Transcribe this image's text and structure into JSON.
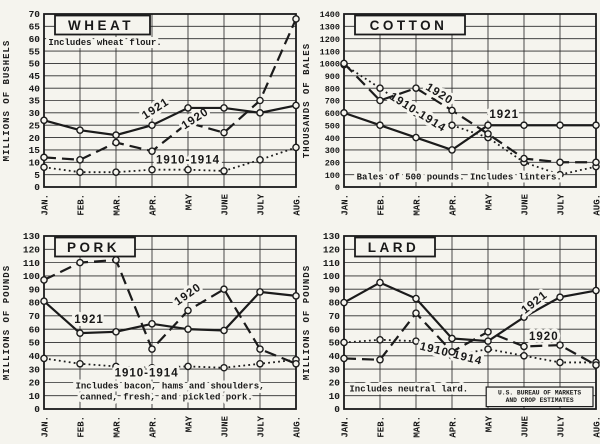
{
  "page": {
    "paper_color": "#f5f4ee",
    "ink_color": "#1b1b1b",
    "description": "Four line charts of monthly exports, January through August, comparing 1921, 1920 and the 1910-1914 average"
  },
  "chart_data": [
    {
      "id": "wheat",
      "type": "line",
      "title": "WHEAT",
      "ylabel": "MILLIONS OF BUSHELS",
      "ylim": [
        0,
        70
      ],
      "ystep": 5,
      "grid": true,
      "months": [
        "JAN.",
        "FEB.",
        "MAR.",
        "APR.",
        "MAY",
        "JUNE",
        "JULY",
        "AUG."
      ],
      "series": [
        {
          "name": "1910-1914",
          "style": "dot",
          "values": [
            8,
            6,
            6,
            7,
            7,
            6.5,
            11,
            16
          ],
          "label": {
            "month": 4.0,
            "value": 9.5,
            "rotate": 0
          }
        },
        {
          "name": "1920",
          "style": "dash",
          "values": [
            12,
            11,
            18,
            14.5,
            26,
            22,
            35,
            68
          ],
          "label": {
            "month": 4.25,
            "value": 26.5,
            "rotate": -33
          }
        },
        {
          "name": "1921",
          "style": "solid",
          "values": [
            27,
            23,
            21,
            25,
            32,
            32,
            30,
            33
          ],
          "label": {
            "month": 3.15,
            "value": 30.5,
            "rotate": -33
          }
        }
      ],
      "notes": [
        {
          "text": "Includes wheat flour.",
          "month": 0.12,
          "value": 57.5,
          "anchor": "start"
        }
      ]
    },
    {
      "id": "cotton",
      "type": "line",
      "title": "COTTON",
      "ylabel": "THOUSANDS OF BALES",
      "ylim": [
        0,
        1400
      ],
      "ystep": 100,
      "grid": true,
      "months": [
        "JAN.",
        "FEB.",
        "MAR.",
        "APR.",
        "MAY",
        "JUNE",
        "JULY",
        "AUG."
      ],
      "series": [
        {
          "name": "1910-1914",
          "style": "dot",
          "values": [
            990,
            800,
            600,
            500,
            400,
            200,
            100,
            165
          ],
          "label": {
            "month": 2.0,
            "value": 580,
            "rotate": 32
          }
        },
        {
          "name": "1920",
          "style": "dash",
          "values": [
            1000,
            700,
            800,
            620,
            430,
            230,
            200,
            200
          ],
          "label": {
            "month": 2.6,
            "value": 730,
            "rotate": 32
          }
        },
        {
          "name": "1921",
          "style": "solid",
          "values": [
            600,
            500,
            400,
            300,
            500,
            500,
            500,
            500
          ],
          "label": {
            "month": 4.45,
            "value": 560,
            "rotate": 0
          }
        }
      ],
      "notes": [
        {
          "text": "Bales of 500 pounds. Includes linters.",
          "month": 0.35,
          "value": 62,
          "anchor": "start"
        }
      ]
    },
    {
      "id": "pork",
      "type": "line",
      "title": "PORK",
      "ylabel": "MILLIONS OF POUNDS",
      "ylim": [
        0,
        130
      ],
      "ystep": 10,
      "grid": true,
      "months": [
        "JAN.",
        "FEB.",
        "MAR.",
        "APR.",
        "MAY",
        "JUNE",
        "JULY",
        "AUG."
      ],
      "series": [
        {
          "name": "1910-1914",
          "style": "dot",
          "values": [
            38,
            34,
            32,
            31,
            32,
            31,
            34,
            37
          ],
          "label": {
            "month": 2.85,
            "value": 24.5,
            "rotate": 0
          }
        },
        {
          "name": "1920",
          "style": "dash",
          "values": [
            97,
            110,
            112,
            45,
            74,
            90,
            45,
            34
          ],
          "label": {
            "month": 4.05,
            "value": 84,
            "rotate": -35
          }
        },
        {
          "name": "1921",
          "style": "solid",
          "values": [
            81,
            57,
            58,
            64,
            60,
            59,
            88,
            85
          ],
          "label": {
            "month": 1.25,
            "value": 64.5,
            "rotate": 0
          }
        }
      ],
      "notes": [
        {
          "text": "Includes bacon, hams and shoulders,",
          "month": 3.5,
          "value": 15.5,
          "anchor": "middle"
        },
        {
          "text": "canned, fresh, and pickled pork.",
          "month": 3.4,
          "value": 7,
          "anchor": "middle"
        }
      ]
    },
    {
      "id": "lard",
      "type": "line",
      "title": "LARD",
      "ylabel": "MILLIONS OF POUNDS",
      "ylim": [
        0,
        130
      ],
      "ystep": 10,
      "grid": true,
      "months": [
        "JAN.",
        "FEB.",
        "MAR.",
        "APR.",
        "MAY",
        "JUNE",
        "JULY",
        "AUG."
      ],
      "series": [
        {
          "name": "1910-1914",
          "style": "dot",
          "values": [
            50,
            52,
            51,
            40,
            45,
            40,
            35,
            35
          ],
          "label": {
            "month": 2.95,
            "value": 39,
            "rotate": 14
          }
        },
        {
          "name": "1920",
          "style": "dash",
          "values": [
            38,
            37,
            72,
            43,
            58,
            47,
            48,
            33
          ],
          "label": {
            "month": 5.55,
            "value": 52,
            "rotate": 0
          }
        },
        {
          "name": "1921",
          "style": "solid",
          "values": [
            80,
            95,
            83,
            53,
            51,
            69,
            84,
            89
          ],
          "label": {
            "month": 5.35,
            "value": 78,
            "rotate": -38
          }
        }
      ],
      "notes": [
        {
          "text": "Includes neutral lard.",
          "month": 0.15,
          "value": 13,
          "anchor": "start"
        }
      ],
      "source_box": {
        "lines": [
          "U.S. BUREAU OF MARKETS",
          "AND CROP ESTIMATES"
        ],
        "month_start": 3.95,
        "value_top": 16.5,
        "value_bottom": 1.8
      }
    }
  ]
}
